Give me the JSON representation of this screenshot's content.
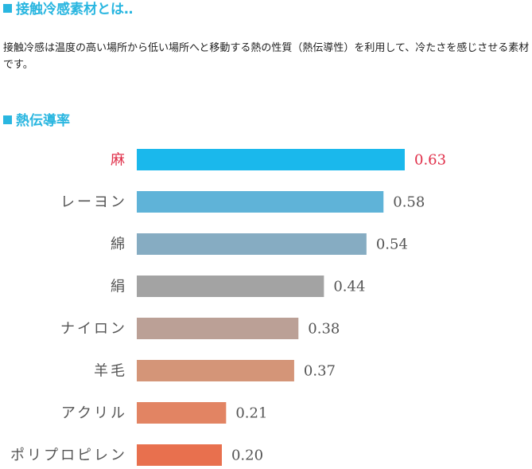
{
  "section1": {
    "title": "接触冷感素材とは‥",
    "description": "接触冷感は温度の高い場所から低い場所へと移動する熱の性質（熱伝導性）を利用して、冷たさを感じさせる素材です。"
  },
  "section2": {
    "title": "熱伝導率"
  },
  "colors": {
    "heading": "#29b6e0",
    "highlight_label": "#e0304a",
    "normal_label": "#555555"
  },
  "chart_data": {
    "type": "bar",
    "orientation": "horizontal",
    "categories": [
      "麻",
      "レーヨン",
      "綿",
      "絹",
      "ナイロン",
      "羊毛",
      "アクリル",
      "ポリプロピレン"
    ],
    "values": [
      0.63,
      0.58,
      0.54,
      0.44,
      0.38,
      0.37,
      0.21,
      0.2
    ],
    "value_labels": [
      "0.63",
      "0.58",
      "0.54",
      "0.44",
      "0.38",
      "0.37",
      "0.21",
      "0.20"
    ],
    "bar_colors": [
      "#1ab8ec",
      "#5fb3d8",
      "#86acc2",
      "#a3a3a3",
      "#bba096",
      "#d49578",
      "#e28463",
      "#e8704e"
    ],
    "highlight_index": 0,
    "xlim": [
      0,
      0.63
    ],
    "grid": false,
    "legend": "none"
  }
}
